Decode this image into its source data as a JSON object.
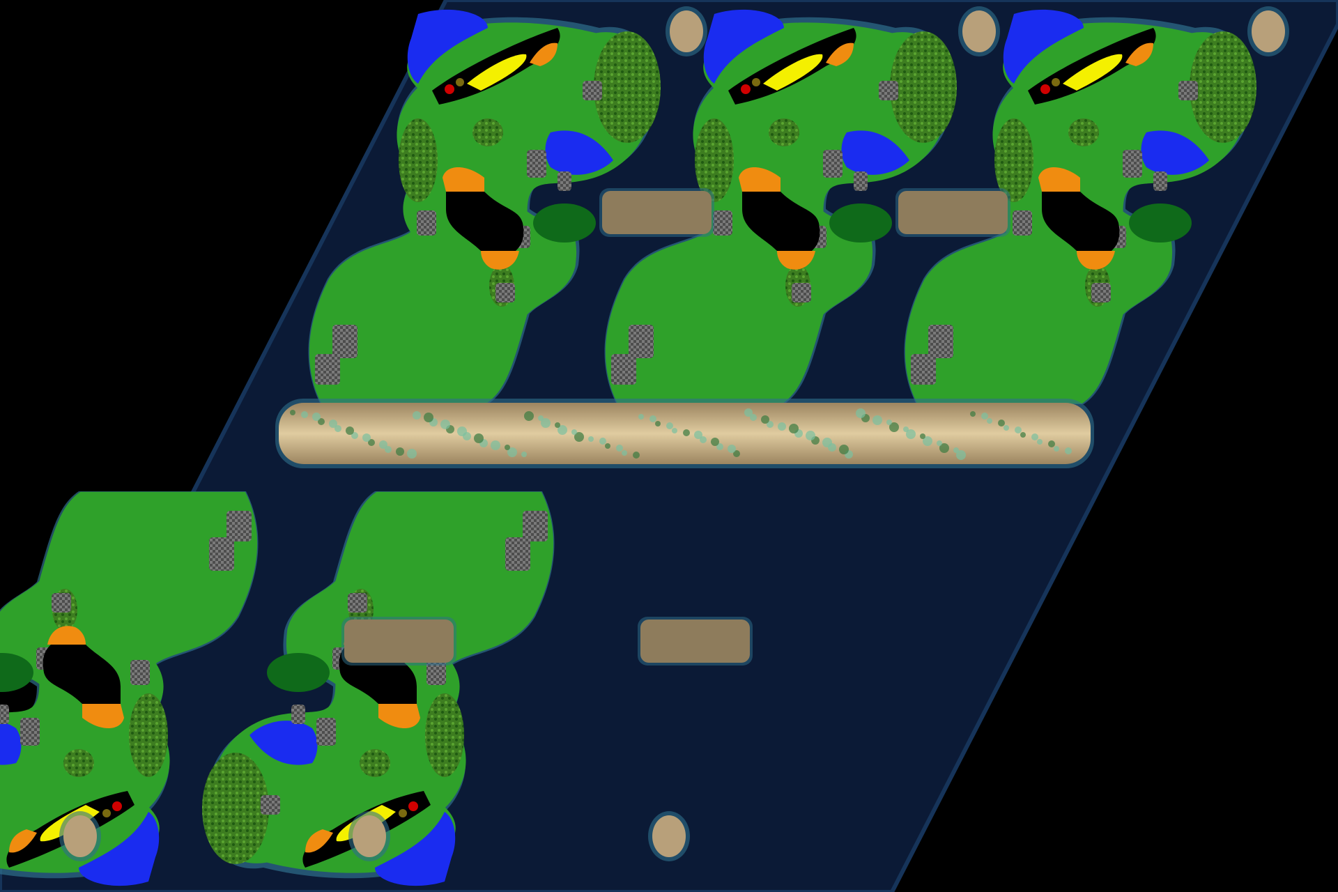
{
  "view": {
    "type": "overhead-map-preview",
    "background_color": "#000000"
  },
  "colors": {
    "deep_water": "#0b1a36",
    "shallow_water": "#16345a",
    "shore_glow": "#2f6f8c",
    "lake": "#1a2cf0",
    "grass": "#2fa12a",
    "grass_dark": "#0f6a1a",
    "forest": "#3a7a22",
    "dirt_path": "#b8a07a",
    "dirt_dark": "#8e7c5c",
    "sand_bridge": "#c9b48c",
    "rock_grid": "#6b6b6b",
    "orange_zone": "#f08c10",
    "black_zone": "#000000",
    "yellow_zone": "#f4f000",
    "marker_red": "#d00000",
    "marker_gold": "#7a6a10"
  },
  "legend_icons": [
    "island-terrain-icon",
    "lake-icon",
    "sand-bridge-icon",
    "rock-patch-icon",
    "start-zone-icon",
    "player-marker-icon"
  ],
  "grid": {
    "columns": 3,
    "rows_top": 1,
    "rows_bottom": 1
  }
}
